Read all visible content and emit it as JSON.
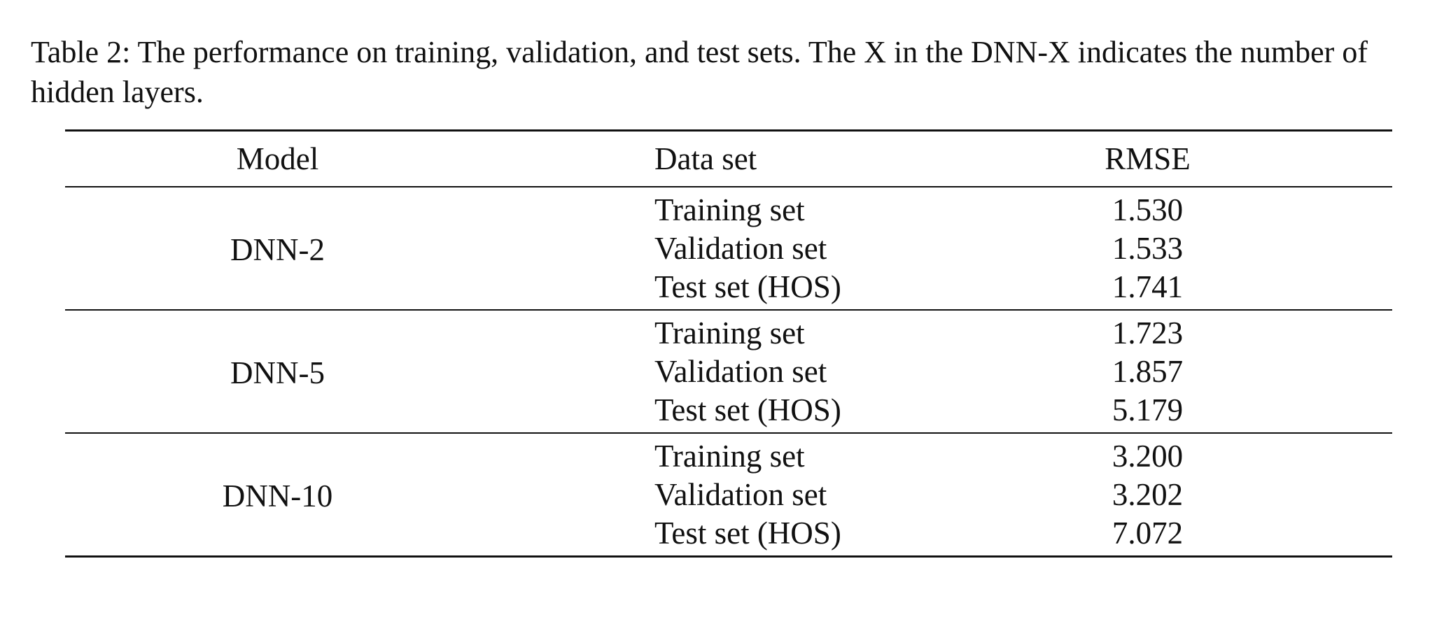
{
  "caption": "Table 2: The performance on training, validation, and test sets. The X in the DNN-X indicates the number of hidden layers.",
  "table": {
    "headers": {
      "model": "Model",
      "data_set": "Data set",
      "rmse": "RMSE"
    },
    "groups": [
      {
        "model": "DNN-2",
        "rows": [
          {
            "data_set": "Training set",
            "rmse": "1.530"
          },
          {
            "data_set": "Validation set",
            "rmse": "1.533"
          },
          {
            "data_set": "Test set (HOS)",
            "rmse": "1.741"
          }
        ]
      },
      {
        "model": "DNN-5",
        "rows": [
          {
            "data_set": "Training set",
            "rmse": "1.723"
          },
          {
            "data_set": "Validation set",
            "rmse": "1.857"
          },
          {
            "data_set": "Test set (HOS)",
            "rmse": "5.179"
          }
        ]
      },
      {
        "model": "DNN-10",
        "rows": [
          {
            "data_set": "Training set",
            "rmse": "3.200"
          },
          {
            "data_set": "Validation set",
            "rmse": "3.202"
          },
          {
            "data_set": "Test set (HOS)",
            "rmse": "7.072"
          }
        ]
      }
    ]
  }
}
